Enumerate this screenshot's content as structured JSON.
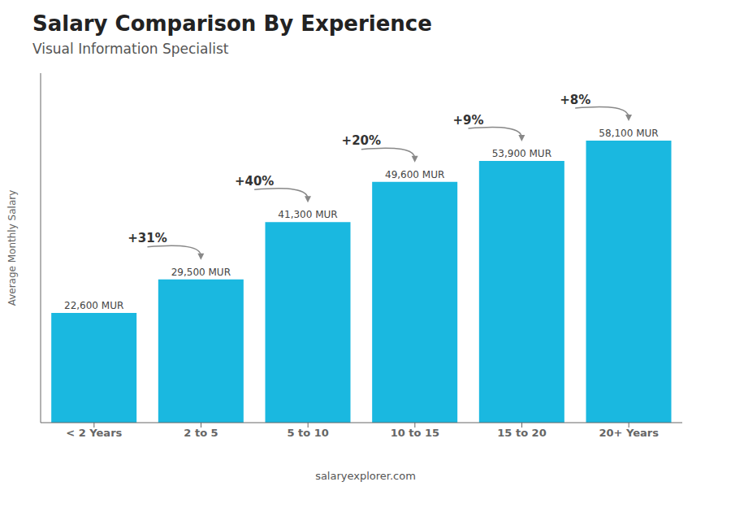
{
  "chart_data": {
    "type": "bar",
    "title": "Salary Comparison By Experience",
    "subtitle": "Visual Information Specialist",
    "categories": [
      "< 2 Years",
      "2 to 5",
      "5 to 10",
      "10 to 15",
      "15 to 20",
      "20+ Years"
    ],
    "values": [
      22600,
      29500,
      41300,
      49600,
      53900,
      58100
    ],
    "value_labels": [
      "22,600 MUR",
      "29,500 MUR",
      "41,300 MUR",
      "49,600 MUR",
      "53,900 MUR",
      "58,100 MUR"
    ],
    "data_labels": true,
    "color": "#1ab8e0",
    "annotations": [
      "+31%",
      "+40%",
      "+20%",
      "+9%",
      "+8%"
    ],
    "ylabel": "Average Monthly Salary",
    "footer": "salaryexplorer.com",
    "ylim": [
      0,
      72000
    ],
    "tick_labels": "x",
    "grid": false
  }
}
